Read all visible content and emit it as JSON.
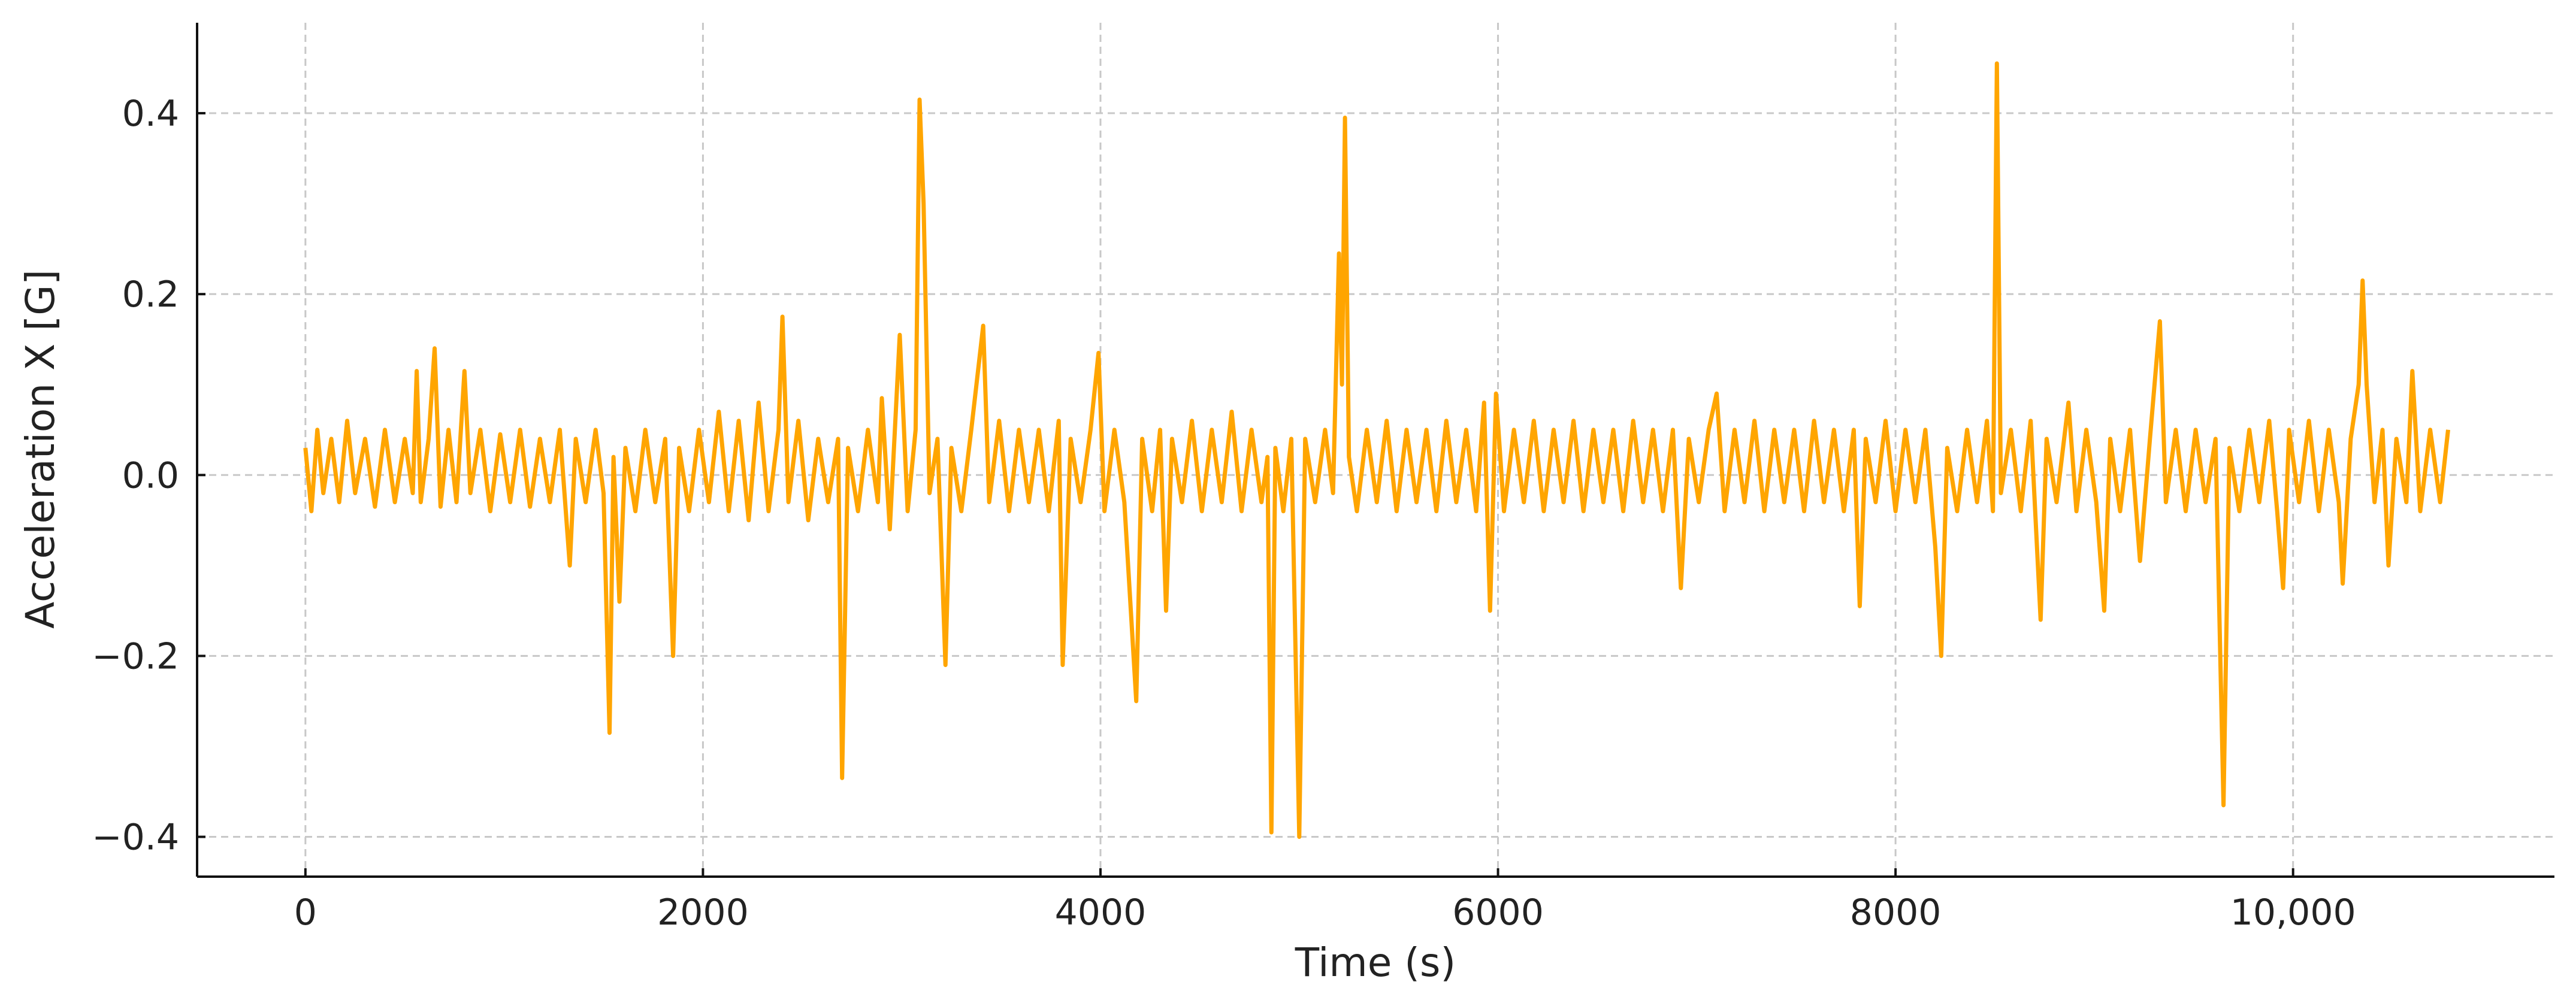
{
  "chart_data": {
    "type": "line",
    "x_label": "Time (s)",
    "y_label": "Acceleration X [G]",
    "xlim": [
      -545,
      11315
    ],
    "ylim": [
      -0.444,
      0.5
    ],
    "grid": true,
    "xticks": [
      0,
      2000,
      4000,
      6000,
      8000,
      {
        "value": 10000,
        "label": "10,000"
      }
    ],
    "yticks": [
      {
        "value": -0.4,
        "label": "−0.4"
      },
      {
        "value": -0.2,
        "label": "−0.2"
      },
      {
        "value": 0,
        "label": "0.0"
      },
      0.2,
      0.4
    ],
    "x": [
      0,
      30,
      60,
      90,
      130,
      170,
      210,
      250,
      300,
      350,
      400,
      450,
      500,
      540,
      560,
      580,
      620,
      650,
      680,
      720,
      760,
      800,
      830,
      880,
      930,
      980,
      1030,
      1080,
      1130,
      1180,
      1230,
      1280,
      1330,
      1360,
      1410,
      1460,
      1500,
      1530,
      1550,
      1580,
      1610,
      1660,
      1710,
      1760,
      1810,
      1850,
      1880,
      1930,
      1980,
      2030,
      2080,
      2130,
      2180,
      2230,
      2280,
      2330,
      2380,
      2400,
      2430,
      2480,
      2530,
      2580,
      2630,
      2680,
      2700,
      2730,
      2780,
      2830,
      2880,
      2900,
      2940,
      2990,
      3030,
      3070,
      3090,
      3110,
      3140,
      3180,
      3220,
      3250,
      3300,
      3350,
      3410,
      3440,
      3490,
      3540,
      3590,
      3640,
      3690,
      3740,
      3790,
      3810,
      3850,
      3900,
      3950,
      3990,
      4020,
      4070,
      4120,
      4180,
      4210,
      4260,
      4300,
      4330,
      4360,
      4410,
      4460,
      4510,
      4560,
      4610,
      4660,
      4710,
      4760,
      4810,
      4840,
      4860,
      4880,
      4920,
      4960,
      5000,
      5030,
      5080,
      5130,
      5170,
      5200,
      5215,
      5230,
      5250,
      5290,
      5340,
      5390,
      5440,
      5490,
      5540,
      5590,
      5640,
      5690,
      5740,
      5790,
      5840,
      5890,
      5930,
      5960,
      5990,
      6030,
      6080,
      6130,
      6180,
      6230,
      6280,
      6330,
      6380,
      6430,
      6480,
      6530,
      6580,
      6630,
      6680,
      6730,
      6780,
      6830,
      6880,
      6920,
      6960,
      7010,
      7060,
      7100,
      7140,
      7190,
      7240,
      7290,
      7340,
      7390,
      7440,
      7490,
      7540,
      7590,
      7640,
      7690,
      7740,
      7790,
      7820,
      7850,
      7900,
      7950,
      8000,
      8050,
      8100,
      8150,
      8200,
      8230,
      8260,
      8310,
      8360,
      8410,
      8460,
      8490,
      8510,
      8530,
      8580,
      8630,
      8680,
      8730,
      8760,
      8810,
      8870,
      8910,
      8960,
      9010,
      9050,
      9080,
      9130,
      9180,
      9230,
      9280,
      9330,
      9360,
      9410,
      9460,
      9510,
      9560,
      9610,
      9650,
      9680,
      9730,
      9780,
      9830,
      9880,
      9920,
      9950,
      9980,
      10030,
      10080,
      10130,
      10180,
      10230,
      10250,
      10290,
      10330,
      10350,
      10370,
      10410,
      10450,
      10480,
      10520,
      10570,
      10600,
      10640,
      10690,
      10740,
      10780
    ],
    "series": [
      {
        "name": "Acceleration X",
        "color": "#ffa500",
        "values": [
          0.03,
          -0.04,
          0.05,
          -0.02,
          0.04,
          -0.03,
          0.06,
          -0.02,
          0.04,
          -0.035,
          0.05,
          -0.03,
          0.04,
          -0.02,
          0.115,
          -0.03,
          0.04,
          0.14,
          -0.035,
          0.05,
          -0.03,
          0.115,
          -0.02,
          0.05,
          -0.04,
          0.045,
          -0.03,
          0.05,
          -0.035,
          0.04,
          -0.03,
          0.05,
          -0.1,
          0.04,
          -0.03,
          0.05,
          -0.02,
          -0.285,
          0.02,
          -0.14,
          0.03,
          -0.04,
          0.05,
          -0.03,
          0.04,
          -0.2,
          0.03,
          -0.04,
          0.05,
          -0.03,
          0.07,
          -0.04,
          0.06,
          -0.05,
          0.08,
          -0.04,
          0.05,
          0.175,
          -0.03,
          0.06,
          -0.05,
          0.04,
          -0.03,
          0.04,
          -0.335,
          0.03,
          -0.04,
          0.05,
          -0.03,
          0.085,
          -0.06,
          0.155,
          -0.04,
          0.05,
          0.415,
          0.3,
          -0.02,
          0.04,
          -0.21,
          0.03,
          -0.04,
          0.05,
          0.165,
          -0.03,
          0.06,
          -0.04,
          0.05,
          -0.03,
          0.05,
          -0.04,
          0.06,
          -0.21,
          0.04,
          -0.03,
          0.05,
          0.135,
          -0.04,
          0.05,
          -0.03,
          -0.25,
          0.04,
          -0.04,
          0.05,
          -0.15,
          0.04,
          -0.03,
          0.06,
          -0.04,
          0.05,
          -0.03,
          0.07,
          -0.04,
          0.05,
          -0.03,
          0.02,
          -0.395,
          0.03,
          -0.04,
          0.04,
          -0.4,
          0.04,
          -0.03,
          0.05,
          -0.02,
          0.245,
          0.1,
          0.395,
          0.02,
          -0.04,
          0.05,
          -0.03,
          0.06,
          -0.04,
          0.05,
          -0.03,
          0.05,
          -0.04,
          0.06,
          -0.03,
          0.05,
          -0.04,
          0.08,
          -0.15,
          0.09,
          -0.04,
          0.05,
          -0.03,
          0.06,
          -0.04,
          0.05,
          -0.03,
          0.06,
          -0.04,
          0.05,
          -0.03,
          0.05,
          -0.04,
          0.06,
          -0.03,
          0.05,
          -0.04,
          0.05,
          -0.125,
          0.04,
          -0.03,
          0.05,
          0.09,
          -0.04,
          0.05,
          -0.03,
          0.06,
          -0.04,
          0.05,
          -0.03,
          0.05,
          -0.04,
          0.06,
          -0.03,
          0.05,
          -0.04,
          0.05,
          -0.145,
          0.04,
          -0.03,
          0.06,
          -0.04,
          0.05,
          -0.03,
          0.05,
          -0.08,
          -0.2,
          0.03,
          -0.04,
          0.05,
          -0.03,
          0.06,
          -0.04,
          0.455,
          -0.02,
          0.05,
          -0.04,
          0.06,
          -0.16,
          0.04,
          -0.03,
          0.08,
          -0.04,
          0.05,
          -0.03,
          -0.15,
          0.04,
          -0.04,
          0.05,
          -0.095,
          0.04,
          0.17,
          -0.03,
          0.05,
          -0.04,
          0.05,
          -0.03,
          0.04,
          -0.365,
          0.03,
          -0.04,
          0.05,
          -0.03,
          0.06,
          -0.04,
          -0.125,
          0.05,
          -0.03,
          0.06,
          -0.04,
          0.05,
          -0.03,
          -0.12,
          0.04,
          0.1,
          0.215,
          0.1,
          -0.03,
          0.05,
          -0.1,
          0.04,
          -0.03,
          0.115,
          -0.04,
          0.05,
          -0.03,
          0.05
        ]
      }
    ]
  }
}
